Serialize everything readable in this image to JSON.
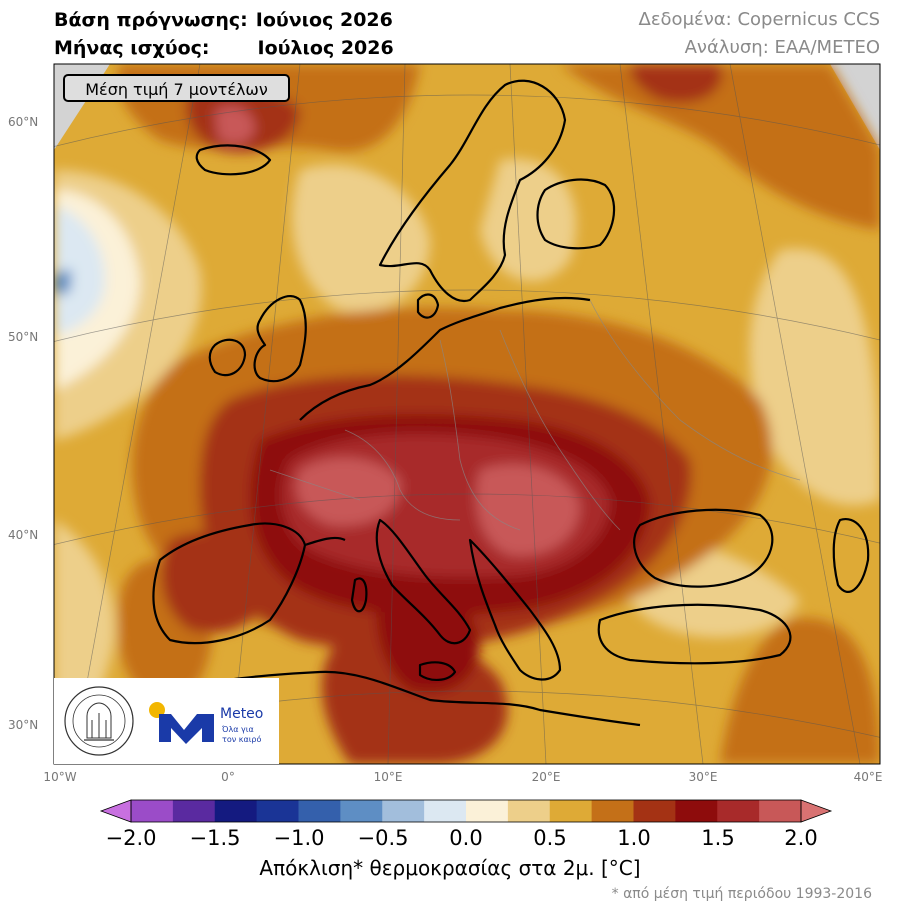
{
  "header": {
    "base_label": "Βάση πρόγνωσης:",
    "base_value": "Ιούνιος 2026",
    "valid_label": "Μήνας ισχύος:",
    "valid_value": "Ιούλιος 2026",
    "data_source": "Δεδομένα: Copernicus CCS",
    "analysis": "Ανάλυση: ΕΑΑ/METEO"
  },
  "map": {
    "badge": "Μέση τιμή 7 μοντέλων",
    "lat_labels": [
      "60°N",
      "50°N",
      "40°N",
      "30°N"
    ],
    "lon_labels": [
      "10°W",
      "0°",
      "10°E",
      "20°E",
      "30°E",
      "40°E"
    ]
  },
  "colorbar": {
    "ticks": [
      "−2.0",
      "−1.5",
      "−1.0",
      "−0.5",
      "0.0",
      "0.5",
      "1.0",
      "1.5",
      "2.0"
    ],
    "label": "Απόκλιση* θερμοκρασίας στα 2μ. [°C]",
    "note": "* από μέση τιμή περιόδου 1993-2016",
    "colors": [
      "#9b4cc8",
      "#5a2aa0",
      "#141a80",
      "#1a3496",
      "#3460ac",
      "#5e8ec4",
      "#a2bedc",
      "#dce8f2",
      "#fbf1d8",
      "#edcf8a",
      "#deaa36",
      "#c47018",
      "#a43214",
      "#8e0c0c",
      "#a82a2a",
      "#c85858"
    ]
  },
  "logos": {
    "observatory_text": "NATIONAL OBSERVATORY OF ATHENS",
    "meteo_name": "Meteo",
    "meteo_tagline_1": "Όλα για",
    "meteo_tagline_2": "τον καιρό",
    "meteo_color": "#1a3aa8",
    "sun_color": "#f2b600"
  }
}
